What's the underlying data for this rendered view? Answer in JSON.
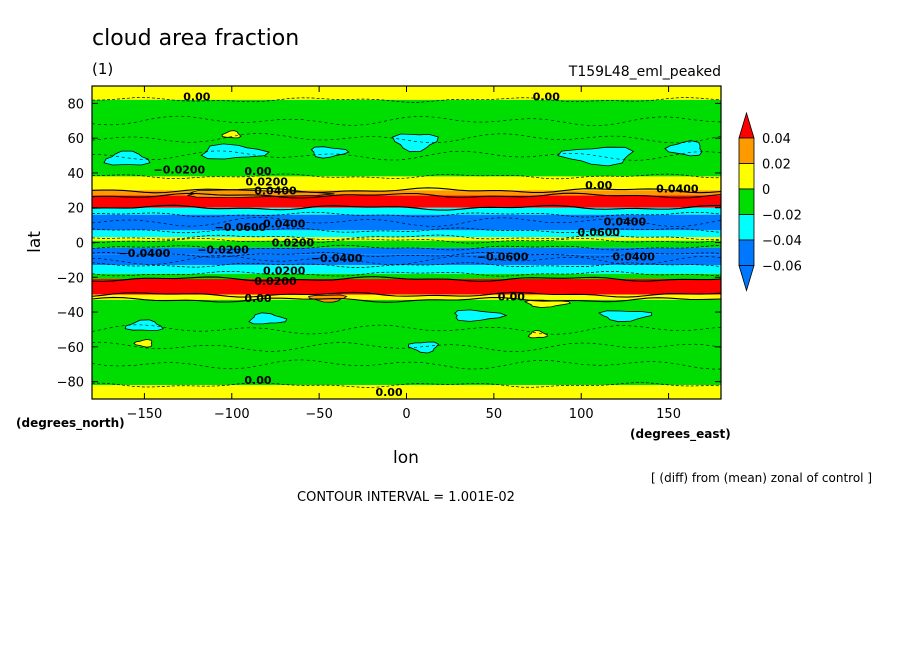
{
  "chart_data": {
    "type": "heatmap",
    "title": "cloud area fraction",
    "subtitle_left": "(1)",
    "subtitle_right": "T159L48_eml_peaked",
    "xlabel": "lon",
    "ylabel": "lat",
    "x_units": "(degrees_east)",
    "y_units": "(degrees_north)",
    "xlim": [
      -180,
      180
    ],
    "ylim": [
      -90,
      90
    ],
    "x_ticks": [
      -150,
      -100,
      -50,
      0,
      50,
      100,
      150
    ],
    "y_ticks": [
      -80,
      -60,
      -40,
      -20,
      0,
      20,
      40,
      60,
      80
    ],
    "note": "[ (diff) from (mean) zonal of control ]",
    "contour_interval": "CONTOUR INTERVAL = 1.001E-02",
    "colorbar": {
      "levels": [
        "0.04",
        "0.02",
        "0",
        "−0.02",
        "−0.04",
        "−0.06"
      ],
      "colors": [
        "#ff0000",
        "#ff9900",
        "#ffff00",
        "#00dd00",
        "#00ffff",
        "#0077ff"
      ],
      "over_color": "#ff0000",
      "under_color": "#0077ff"
    },
    "zonal_bands": [
      {
        "lat_min": 82,
        "lat_max": 90,
        "value": 0.005
      },
      {
        "lat_min": 38,
        "lat_max": 82,
        "value": -0.01
      },
      {
        "lat_min": 30,
        "lat_max": 38,
        "value": 0.005
      },
      {
        "lat_min": 27,
        "lat_max": 30,
        "value": 0.015
      },
      {
        "lat_min": 20,
        "lat_max": 27,
        "value": 0.03
      },
      {
        "lat_min": 16,
        "lat_max": 20,
        "value": -0.03
      },
      {
        "lat_min": 7,
        "lat_max": 16,
        "value": -0.05
      },
      {
        "lat_min": 3,
        "lat_max": 7,
        "value": -0.03
      },
      {
        "lat_min": 1,
        "lat_max": 3,
        "value": 0.005
      },
      {
        "lat_min": -3,
        "lat_max": 1,
        "value": -0.01
      },
      {
        "lat_min": -7,
        "lat_max": -3,
        "value": -0.05
      },
      {
        "lat_min": -13,
        "lat_max": -7,
        "value": -0.05
      },
      {
        "lat_min": -18,
        "lat_max": -13,
        "value": -0.03
      },
      {
        "lat_min": -21,
        "lat_max": -18,
        "value": -0.01
      },
      {
        "lat_min": -30,
        "lat_max": -21,
        "value": 0.03
      },
      {
        "lat_min": -33,
        "lat_max": -30,
        "value": 0.005
      },
      {
        "lat_min": -82,
        "lat_max": -33,
        "value": -0.01
      },
      {
        "lat_min": -90,
        "lat_max": -82,
        "value": 0.005
      }
    ],
    "patches": [
      {
        "lon": -160,
        "lat": 48,
        "rlon": 12,
        "rlat": 4,
        "value": -0.03
      },
      {
        "lon": -100,
        "lat": 52,
        "rlon": 18,
        "rlat": 4,
        "value": -0.03
      },
      {
        "lon": -45,
        "lat": 52,
        "rlon": 10,
        "rlat": 3,
        "value": -0.03
      },
      {
        "lon": 5,
        "lat": 58,
        "rlon": 12,
        "rlat": 5,
        "value": -0.03
      },
      {
        "lon": 110,
        "lat": 50,
        "rlon": 20,
        "rlat": 5,
        "value": -0.03
      },
      {
        "lon": 160,
        "lat": 54,
        "rlon": 10,
        "rlat": 4,
        "value": -0.03
      },
      {
        "lon": -150,
        "lat": -48,
        "rlon": 10,
        "rlat": 3,
        "value": -0.03
      },
      {
        "lon": -80,
        "lat": -44,
        "rlon": 10,
        "rlat": 3,
        "value": -0.03
      },
      {
        "lon": 40,
        "lat": -42,
        "rlon": 14,
        "rlat": 3,
        "value": -0.03
      },
      {
        "lon": 125,
        "lat": -42,
        "rlon": 14,
        "rlat": 3,
        "value": -0.03
      },
      {
        "lon": 10,
        "lat": -60,
        "rlon": 8,
        "rlat": 3,
        "value": -0.03
      },
      {
        "lon": -150,
        "lat": -58,
        "rlon": 5,
        "rlat": 2,
        "value": 0.005
      },
      {
        "lon": -100,
        "lat": 62,
        "rlon": 5,
        "rlat": 2,
        "value": 0.005
      },
      {
        "lon": 75,
        "lat": -53,
        "rlon": 5,
        "rlat": 2,
        "value": 0.005
      },
      {
        "lon": -90,
        "lat": 28,
        "rlon": 40,
        "rlat": 2,
        "value": 0.015
      },
      {
        "lon": 80,
        "lat": -35,
        "rlon": 12,
        "rlat": 2,
        "value": 0.005
      },
      {
        "lon": -45,
        "lat": -32,
        "rlon": 10,
        "rlat": 2,
        "value": 0.015
      }
    ],
    "contour_labels": [
      {
        "text": "0.00",
        "lon": -120,
        "lat": 84
      },
      {
        "text": "0.00",
        "lon": 80,
        "lat": 84
      },
      {
        "text": "−0.0200",
        "lon": -130,
        "lat": 42
      },
      {
        "text": "0.00",
        "lon": -85,
        "lat": 41
      },
      {
        "text": "0.00",
        "lon": 110,
        "lat": 33
      },
      {
        "text": "0.0400",
        "lon": 155,
        "lat": 31
      },
      {
        "text": "0.0200",
        "lon": -80,
        "lat": 35
      },
      {
        "text": "0.0400",
        "lon": -75,
        "lat": 30
      },
      {
        "text": "−0.0600",
        "lon": -95,
        "lat": 9
      },
      {
        "text": "0.0400",
        "lon": -70,
        "lat": 11
      },
      {
        "text": "0.0400",
        "lon": 125,
        "lat": 12
      },
      {
        "text": "0.0600",
        "lon": 110,
        "lat": 6
      },
      {
        "text": "0.0200",
        "lon": -65,
        "lat": 0
      },
      {
        "text": "−0.0400",
        "lon": -150,
        "lat": -6
      },
      {
        "text": "−0.0200",
        "lon": -105,
        "lat": -4
      },
      {
        "text": "−0.0400",
        "lon": -40,
        "lat": -9
      },
      {
        "text": "−0.0600",
        "lon": 55,
        "lat": -8
      },
      {
        "text": "0.0400",
        "lon": 130,
        "lat": -8
      },
      {
        "text": "0.0200",
        "lon": -70,
        "lat": -16
      },
      {
        "text": "0.0200",
        "lon": -75,
        "lat": -22
      },
      {
        "text": "0.00",
        "lon": -85,
        "lat": -32
      },
      {
        "text": "0.00",
        "lon": 60,
        "lat": -31
      },
      {
        "text": "0.00",
        "lon": -85,
        "lat": -79
      },
      {
        "text": "0.00",
        "lon": -10,
        "lat": -86
      }
    ]
  }
}
